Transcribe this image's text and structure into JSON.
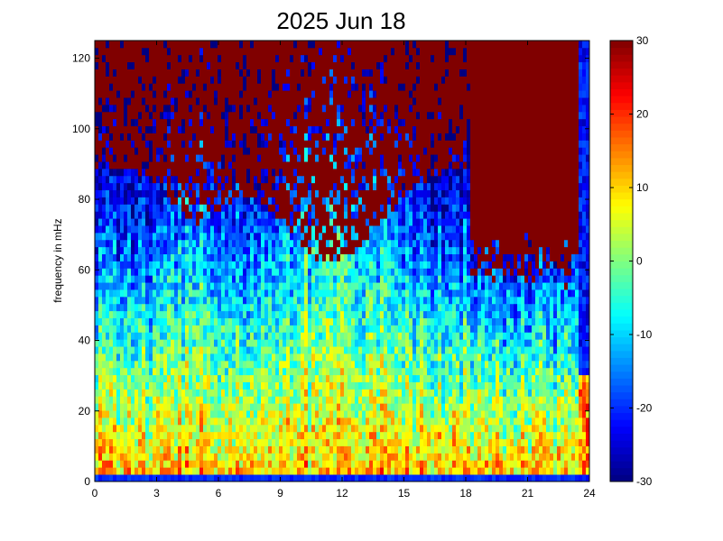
{
  "chart_data": {
    "type": "heatmap",
    "title": "2025 Jun 18",
    "xlabel": "",
    "ylabel": "frequency in mHz",
    "x_ticks": [
      "0",
      "3",
      "6",
      "9",
      "12",
      "15",
      "18",
      "21",
      "24"
    ],
    "y_ticks": [
      "0",
      "20",
      "40",
      "60",
      "80",
      "100",
      "120"
    ],
    "xlim": [
      0,
      24
    ],
    "ylim": [
      0,
      125
    ],
    "colorbar": {
      "colormap": "jet",
      "range": [
        -30,
        30
      ],
      "ticks": [
        "30",
        "20",
        "10",
        "0",
        "-10",
        "-20",
        "-30"
      ]
    },
    "colors": {
      "saturated_high": "#800000",
      "low": "#00008f"
    }
  }
}
